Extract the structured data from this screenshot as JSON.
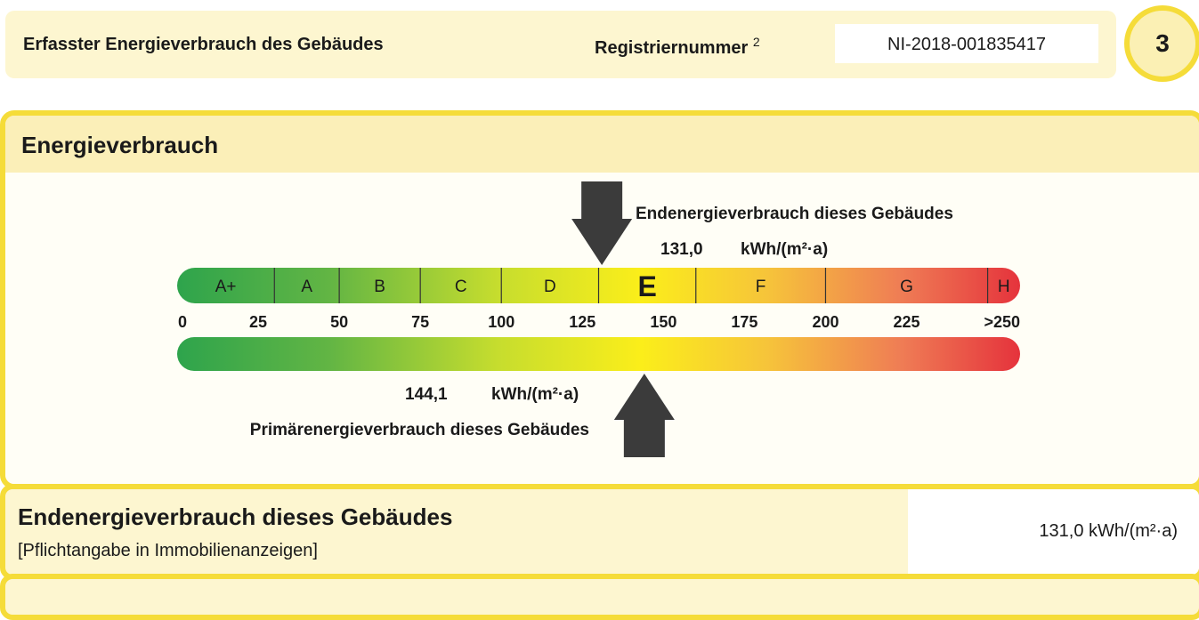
{
  "header": {
    "title": "Erfasster Energieverbrauch des Gebäudes",
    "registration_label": "Registriernummer",
    "registration_footnote": "2",
    "registration_number": "NI-2018-001835417",
    "page_number": "3"
  },
  "panel": {
    "title": "Energieverbrauch",
    "end_energy_label": "Endenergieverbrauch dieses Gebäudes",
    "end_energy_value": "131,0",
    "end_energy_unit": "kWh/(m²·a)",
    "primary_energy_label": "Primärenergieverbrauch dieses Gebäudes",
    "primary_energy_value": "144,1",
    "primary_energy_unit": "kWh/(m²·a)"
  },
  "chart_data": {
    "type": "bar",
    "classes": [
      "A+",
      "A",
      "B",
      "C",
      "D",
      "E",
      "F",
      "G",
      "H"
    ],
    "class_bounds": [
      0,
      30,
      50,
      75,
      100,
      130,
      160,
      200,
      250,
      260
    ],
    "highlighted_class": "E",
    "tick_values": [
      0,
      25,
      50,
      75,
      100,
      125,
      150,
      175,
      200,
      225,
      250
    ],
    "tick_labels": [
      "0",
      "25",
      "50",
      "75",
      "100",
      "125",
      "150",
      "175",
      "200",
      "225",
      ">250"
    ],
    "scale_max": 260,
    "markers": [
      {
        "kind": "Endenergieverbrauch",
        "value": 131.0,
        "position": "top"
      },
      {
        "kind": "Primärenergieverbrauch",
        "value": 144.1,
        "position": "bottom"
      }
    ],
    "colors": {
      "green": "#3aa64a",
      "yellow": "#f7ea1c",
      "red": "#e4343a"
    }
  },
  "section2": {
    "title": "Endenergieverbrauch dieses Gebäudes",
    "note": "[Pflichtangabe in Immobilienanzeigen]",
    "value": "131,0 kWh/(m²·a)"
  }
}
